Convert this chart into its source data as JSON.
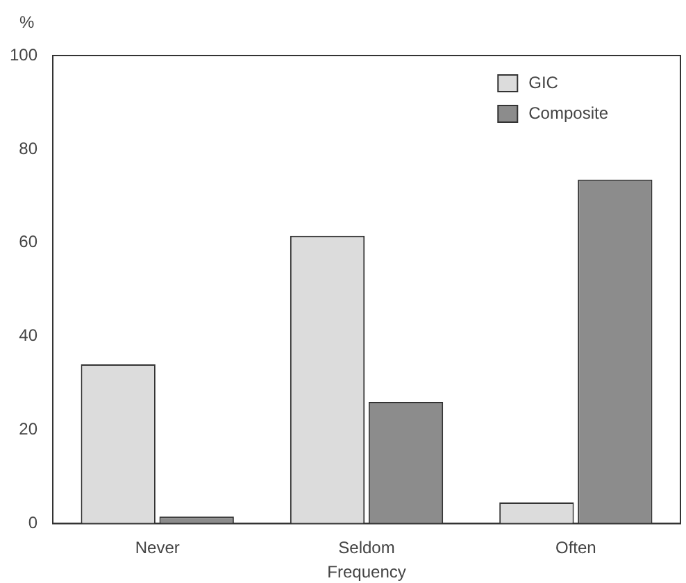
{
  "chart_data": {
    "type": "bar",
    "xlabel": "Frequency",
    "ylabel": "%",
    "categories": [
      "Never",
      "Seldom",
      "Often"
    ],
    "series": [
      {
        "name": "GIC",
        "color": "#dcdcdc",
        "values": [
          34,
          61.5,
          4.5
        ]
      },
      {
        "name": "Composite",
        "color": "#8c8c8c",
        "values": [
          1.5,
          26,
          73.5
        ]
      }
    ],
    "ylim": [
      0,
      100
    ],
    "yticks": [
      0,
      20,
      40,
      60,
      80,
      100
    ],
    "grid": false,
    "legend": "top right"
  }
}
